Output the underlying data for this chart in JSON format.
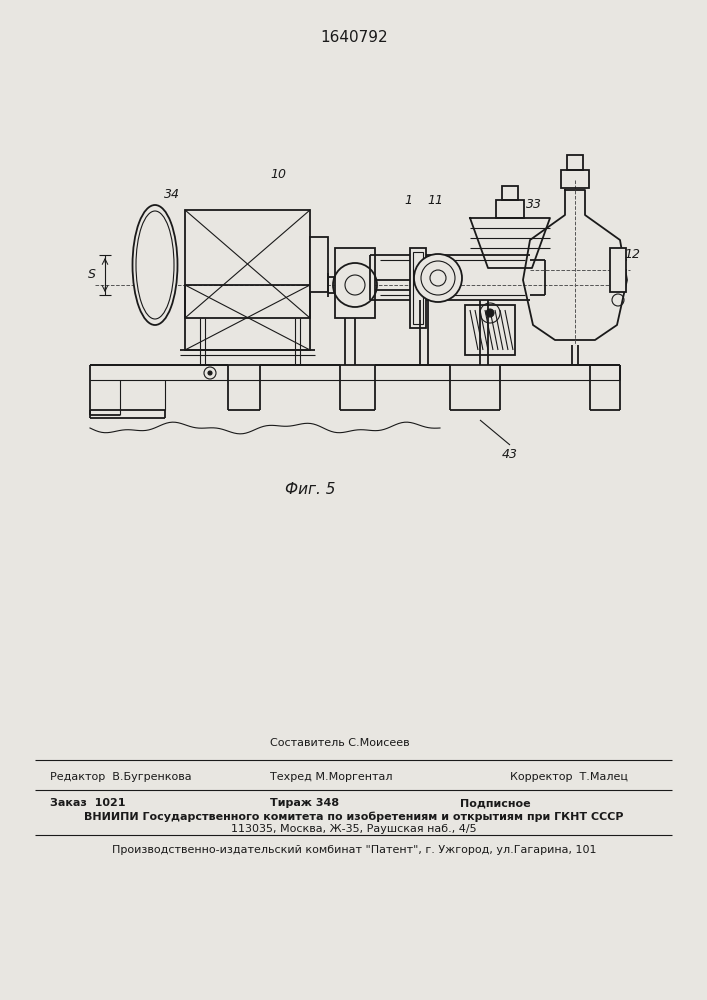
{
  "patent_number": "1640792",
  "fig_label": "Фиг. 5",
  "bg_color": "#e8e6e1",
  "lc": "#1a1a1a",
  "footer": {
    "line1_left": "Редактор  В.Бугренкова",
    "line1_mid1": "Составитель С.Моисеев",
    "line1_mid2": "Техред М.Моргентал",
    "line1_right": "Корректор  Т.Малец",
    "order": "Заказ  1021",
    "tirazh": "Тираж 348",
    "podpisnoe": "Подписное",
    "vniip1": "ВНИИПИ Государственного комитета по изобретениям и открытиям при ГКНТ СССР",
    "vniip2": "113035, Москва, Ж-35, Раушская наб., 4/5",
    "production": "Производственно-издательский комбинат \"Патент\", г. Ужгород, ул.Гагарина, 101"
  }
}
